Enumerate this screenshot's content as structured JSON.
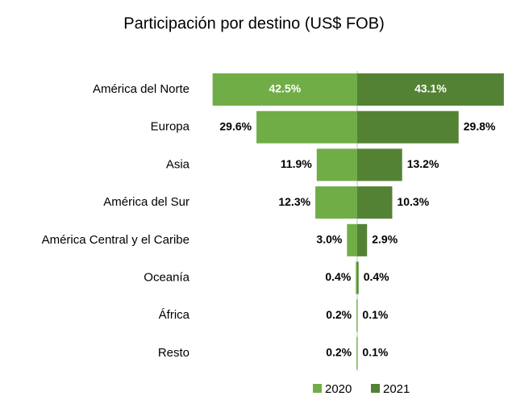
{
  "chart_data": {
    "type": "butterfly",
    "title": "Participación por destino (US$ FOB)",
    "categories": [
      "América del Norte",
      "Europa",
      "Asia",
      "América del Sur",
      "América Central y el Caribe",
      "Oceanía",
      "África",
      "Resto"
    ],
    "series": [
      {
        "name": "2020",
        "color": "#70ad47",
        "values": [
          42.5,
          29.6,
          11.9,
          12.3,
          3.0,
          0.4,
          0.2,
          0.2
        ],
        "value_labels": [
          "42.5%",
          "29.6%",
          "11.9%",
          "12.3%",
          "3.0%",
          "0.4%",
          "0.2%",
          "0.2%"
        ]
      },
      {
        "name": "2021",
        "color": "#548235",
        "values": [
          43.1,
          29.8,
          13.2,
          10.3,
          2.9,
          0.4,
          0.1,
          0.1
        ],
        "value_labels": [
          "43.1%",
          "29.8%",
          "13.2%",
          "10.3%",
          "2.9%",
          "0.4%",
          "0.1%",
          "0.1%"
        ]
      }
    ],
    "legend": "bottom"
  }
}
